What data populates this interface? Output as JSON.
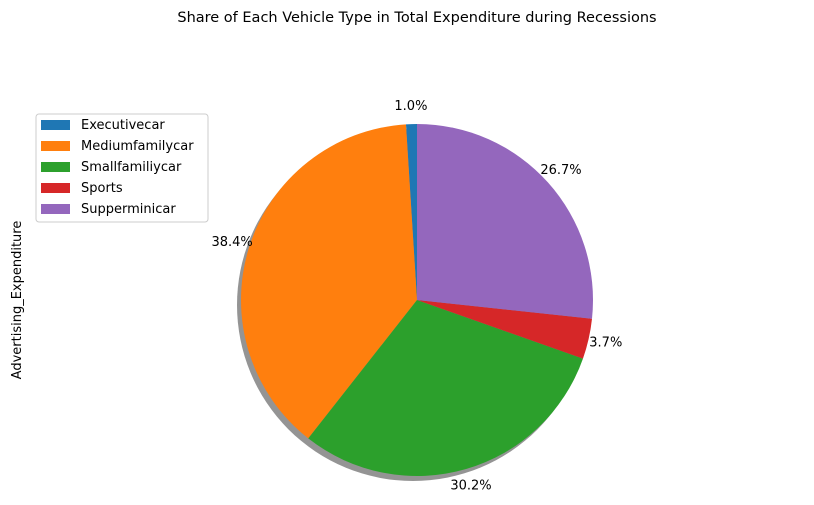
{
  "chart_data": {
    "type": "pie",
    "title": "Share of Each Vehicle Type in Total Expenditure during Recessions",
    "ylabel": "Advertising_Expenditure",
    "start_angle_deg": 90,
    "direction": "counterclockwise",
    "shadow": true,
    "legend_position": "upper-left",
    "slices": [
      {
        "label": "Executivecar",
        "value": 1.0,
        "pct_label": "1.0%",
        "color": "#1f77b4"
      },
      {
        "label": "Mediumfamilycar",
        "value": 38.4,
        "pct_label": "38.4%",
        "color": "#ff7f0e"
      },
      {
        "label": "Smallfamiliycar",
        "value": 30.2,
        "pct_label": "30.2%",
        "color": "#2ca02c"
      },
      {
        "label": "Sports",
        "value": 3.7,
        "pct_label": "3.7%",
        "color": "#d62728"
      },
      {
        "label": "Supperminicar",
        "value": 26.7,
        "pct_label": "26.7%",
        "color": "#9467bd"
      }
    ]
  }
}
